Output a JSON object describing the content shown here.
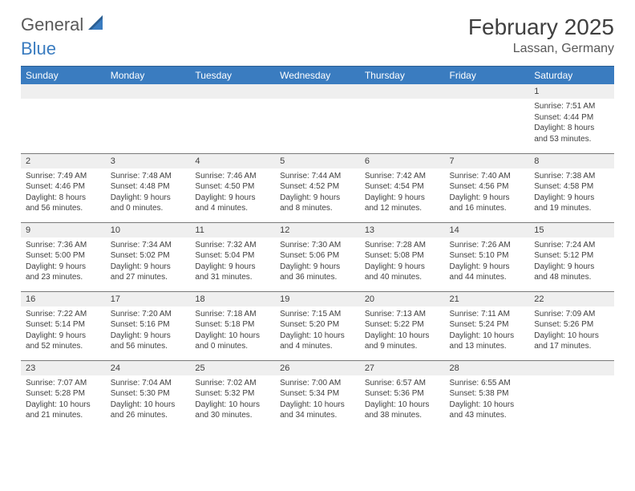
{
  "brand": {
    "text1": "General",
    "text2": "Blue"
  },
  "title": "February 2025",
  "location": "Lassan, Germany",
  "dayHeaders": [
    "Sunday",
    "Monday",
    "Tuesday",
    "Wednesday",
    "Thursday",
    "Friday",
    "Saturday"
  ],
  "colors": {
    "headerBg": "#3a7cc0",
    "headerText": "#ffffff",
    "dayNumBg": "#efefef",
    "border": "#7a7a7a",
    "textPrimary": "#404040",
    "brandGray": "#595959",
    "brandBlue": "#3a7cc0"
  },
  "weeks": [
    [
      {
        "n": "",
        "sunrise": "",
        "sunset": "",
        "daylight": ""
      },
      {
        "n": "",
        "sunrise": "",
        "sunset": "",
        "daylight": ""
      },
      {
        "n": "",
        "sunrise": "",
        "sunset": "",
        "daylight": ""
      },
      {
        "n": "",
        "sunrise": "",
        "sunset": "",
        "daylight": ""
      },
      {
        "n": "",
        "sunrise": "",
        "sunset": "",
        "daylight": ""
      },
      {
        "n": "",
        "sunrise": "",
        "sunset": "",
        "daylight": ""
      },
      {
        "n": "1",
        "sunrise": "Sunrise: 7:51 AM",
        "sunset": "Sunset: 4:44 PM",
        "daylight": "Daylight: 8 hours and 53 minutes."
      }
    ],
    [
      {
        "n": "2",
        "sunrise": "Sunrise: 7:49 AM",
        "sunset": "Sunset: 4:46 PM",
        "daylight": "Daylight: 8 hours and 56 minutes."
      },
      {
        "n": "3",
        "sunrise": "Sunrise: 7:48 AM",
        "sunset": "Sunset: 4:48 PM",
        "daylight": "Daylight: 9 hours and 0 minutes."
      },
      {
        "n": "4",
        "sunrise": "Sunrise: 7:46 AM",
        "sunset": "Sunset: 4:50 PM",
        "daylight": "Daylight: 9 hours and 4 minutes."
      },
      {
        "n": "5",
        "sunrise": "Sunrise: 7:44 AM",
        "sunset": "Sunset: 4:52 PM",
        "daylight": "Daylight: 9 hours and 8 minutes."
      },
      {
        "n": "6",
        "sunrise": "Sunrise: 7:42 AM",
        "sunset": "Sunset: 4:54 PM",
        "daylight": "Daylight: 9 hours and 12 minutes."
      },
      {
        "n": "7",
        "sunrise": "Sunrise: 7:40 AM",
        "sunset": "Sunset: 4:56 PM",
        "daylight": "Daylight: 9 hours and 16 minutes."
      },
      {
        "n": "8",
        "sunrise": "Sunrise: 7:38 AM",
        "sunset": "Sunset: 4:58 PM",
        "daylight": "Daylight: 9 hours and 19 minutes."
      }
    ],
    [
      {
        "n": "9",
        "sunrise": "Sunrise: 7:36 AM",
        "sunset": "Sunset: 5:00 PM",
        "daylight": "Daylight: 9 hours and 23 minutes."
      },
      {
        "n": "10",
        "sunrise": "Sunrise: 7:34 AM",
        "sunset": "Sunset: 5:02 PM",
        "daylight": "Daylight: 9 hours and 27 minutes."
      },
      {
        "n": "11",
        "sunrise": "Sunrise: 7:32 AM",
        "sunset": "Sunset: 5:04 PM",
        "daylight": "Daylight: 9 hours and 31 minutes."
      },
      {
        "n": "12",
        "sunrise": "Sunrise: 7:30 AM",
        "sunset": "Sunset: 5:06 PM",
        "daylight": "Daylight: 9 hours and 36 minutes."
      },
      {
        "n": "13",
        "sunrise": "Sunrise: 7:28 AM",
        "sunset": "Sunset: 5:08 PM",
        "daylight": "Daylight: 9 hours and 40 minutes."
      },
      {
        "n": "14",
        "sunrise": "Sunrise: 7:26 AM",
        "sunset": "Sunset: 5:10 PM",
        "daylight": "Daylight: 9 hours and 44 minutes."
      },
      {
        "n": "15",
        "sunrise": "Sunrise: 7:24 AM",
        "sunset": "Sunset: 5:12 PM",
        "daylight": "Daylight: 9 hours and 48 minutes."
      }
    ],
    [
      {
        "n": "16",
        "sunrise": "Sunrise: 7:22 AM",
        "sunset": "Sunset: 5:14 PM",
        "daylight": "Daylight: 9 hours and 52 minutes."
      },
      {
        "n": "17",
        "sunrise": "Sunrise: 7:20 AM",
        "sunset": "Sunset: 5:16 PM",
        "daylight": "Daylight: 9 hours and 56 minutes."
      },
      {
        "n": "18",
        "sunrise": "Sunrise: 7:18 AM",
        "sunset": "Sunset: 5:18 PM",
        "daylight": "Daylight: 10 hours and 0 minutes."
      },
      {
        "n": "19",
        "sunrise": "Sunrise: 7:15 AM",
        "sunset": "Sunset: 5:20 PM",
        "daylight": "Daylight: 10 hours and 4 minutes."
      },
      {
        "n": "20",
        "sunrise": "Sunrise: 7:13 AM",
        "sunset": "Sunset: 5:22 PM",
        "daylight": "Daylight: 10 hours and 9 minutes."
      },
      {
        "n": "21",
        "sunrise": "Sunrise: 7:11 AM",
        "sunset": "Sunset: 5:24 PM",
        "daylight": "Daylight: 10 hours and 13 minutes."
      },
      {
        "n": "22",
        "sunrise": "Sunrise: 7:09 AM",
        "sunset": "Sunset: 5:26 PM",
        "daylight": "Daylight: 10 hours and 17 minutes."
      }
    ],
    [
      {
        "n": "23",
        "sunrise": "Sunrise: 7:07 AM",
        "sunset": "Sunset: 5:28 PM",
        "daylight": "Daylight: 10 hours and 21 minutes."
      },
      {
        "n": "24",
        "sunrise": "Sunrise: 7:04 AM",
        "sunset": "Sunset: 5:30 PM",
        "daylight": "Daylight: 10 hours and 26 minutes."
      },
      {
        "n": "25",
        "sunrise": "Sunrise: 7:02 AM",
        "sunset": "Sunset: 5:32 PM",
        "daylight": "Daylight: 10 hours and 30 minutes."
      },
      {
        "n": "26",
        "sunrise": "Sunrise: 7:00 AM",
        "sunset": "Sunset: 5:34 PM",
        "daylight": "Daylight: 10 hours and 34 minutes."
      },
      {
        "n": "27",
        "sunrise": "Sunrise: 6:57 AM",
        "sunset": "Sunset: 5:36 PM",
        "daylight": "Daylight: 10 hours and 38 minutes."
      },
      {
        "n": "28",
        "sunrise": "Sunrise: 6:55 AM",
        "sunset": "Sunset: 5:38 PM",
        "daylight": "Daylight: 10 hours and 43 minutes."
      },
      {
        "n": "",
        "sunrise": "",
        "sunset": "",
        "daylight": ""
      }
    ]
  ]
}
